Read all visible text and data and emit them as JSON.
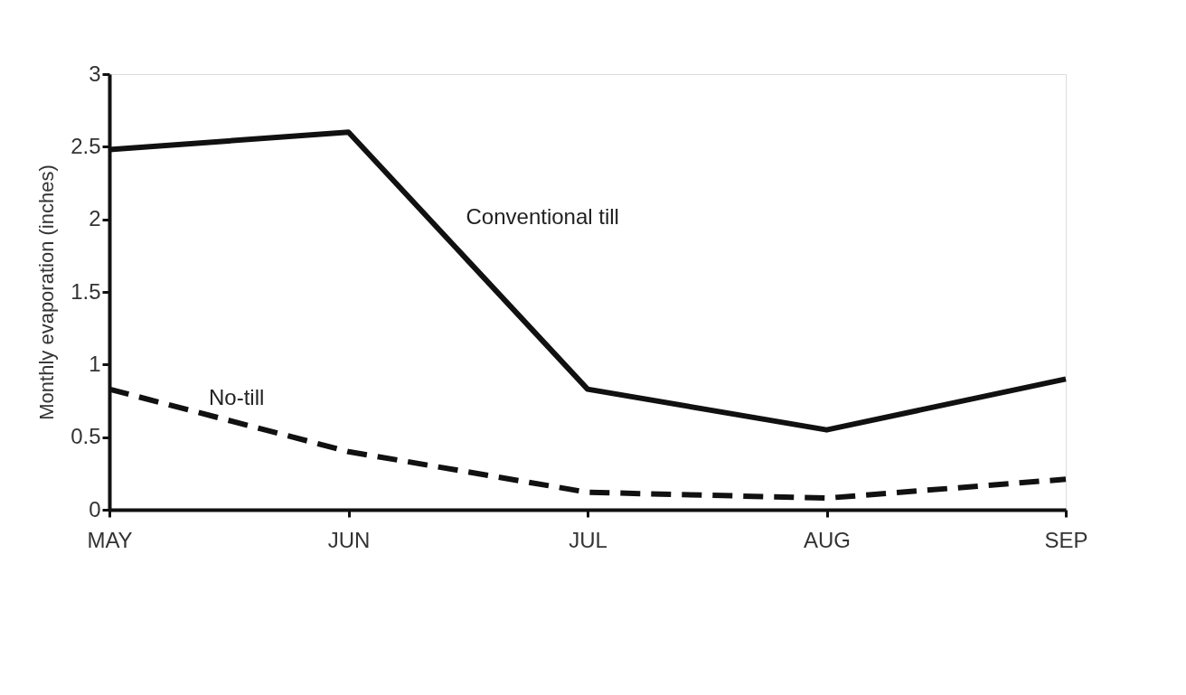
{
  "chart_data": {
    "type": "line",
    "ylabel": "Monthly evaporation (inches)",
    "categories": [
      "MAY",
      "JUN",
      "JUL",
      "AUG",
      "SEP"
    ],
    "series": [
      {
        "name": "Conventional till",
        "color": "#111111",
        "line_style": "solid",
        "values": [
          2.48,
          2.6,
          0.83,
          0.55,
          0.9
        ]
      },
      {
        "name": "No-till",
        "color": "#111111",
        "line_style": "dashed",
        "values": [
          0.83,
          0.4,
          0.12,
          0.08,
          0.21
        ]
      }
    ],
    "ylim": [
      0,
      3
    ],
    "yticks": [
      0,
      0.5,
      1,
      1.5,
      2,
      2.5,
      3
    ],
    "grid": false,
    "legend": false,
    "marker": "none"
  }
}
